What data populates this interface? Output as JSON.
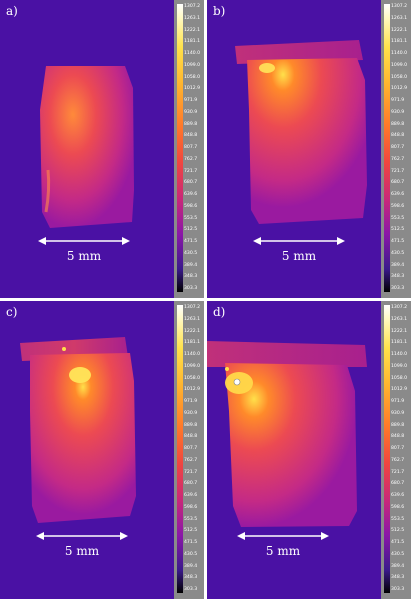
{
  "colorbar_ticks": [
    "1307.2",
    "1263.1",
    "1222.1",
    "1181.1",
    "1140.0",
    "1099.0",
    "1058.0",
    "1012.9",
    "971.9",
    "930.9",
    "889.8",
    "848.8",
    "807.7",
    "762.7",
    "721.7",
    "680.7",
    "639.6",
    "598.6",
    "553.5",
    "512.5",
    "471.5",
    "430.5",
    "389.4",
    "348.3",
    "303.3"
  ],
  "scale_label": "5 mm",
  "panels": [
    {
      "id": "a",
      "label": "a)"
    },
    {
      "id": "b",
      "label": "b)"
    },
    {
      "id": "c",
      "label": "c)"
    },
    {
      "id": "d",
      "label": "d)"
    }
  ],
  "colors": {
    "background": "#4a11a4",
    "sample_mid": "#e0406a",
    "hot_spot": "#ffd84a"
  }
}
